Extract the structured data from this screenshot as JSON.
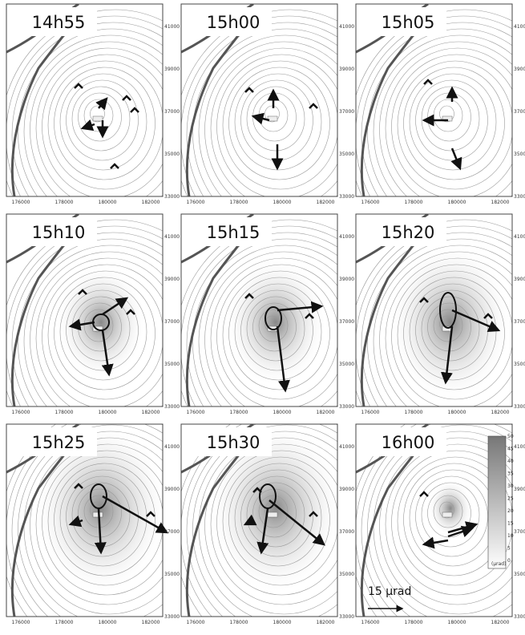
{
  "panels": [
    {
      "time": "14h55"
    },
    {
      "time": "15h00"
    },
    {
      "time": "15h05"
    },
    {
      "time": "15h10"
    },
    {
      "time": "15h15"
    },
    {
      "time": "15h20"
    },
    {
      "time": "15h25"
    },
    {
      "time": "15h30"
    },
    {
      "time": "16h00"
    }
  ],
  "x_tick_labels": [
    "176000",
    "178000",
    "180000",
    "182000"
  ],
  "y_tick_labels": [
    "41000",
    "39000",
    "37000",
    "35000",
    "33000"
  ],
  "scale_label": "15 µrad",
  "colorbar": {
    "ticks": [
      "50",
      "45",
      "40",
      "35",
      "30",
      "25",
      "20",
      "15",
      "10",
      "5",
      "0"
    ],
    "unit": "(µrad)"
  }
}
